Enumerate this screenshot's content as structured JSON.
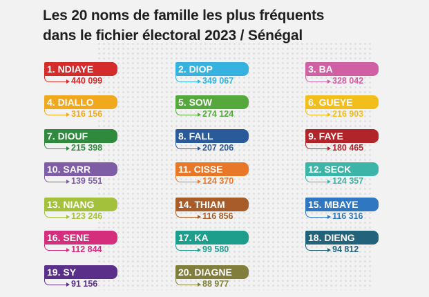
{
  "title_lines": [
    "Les 20 noms de famille les plus fréquents",
    "dans le fichier électoral 2023 / Sénégal"
  ],
  "chart_data": {
    "type": "table",
    "title": "Les 20 noms de famille les plus fréquents dans le fichier électoral 2023 / Sénégal",
    "items": [
      {
        "label": "1. NDIAYE",
        "value": "440 099",
        "color": "#d42b2b"
      },
      {
        "label": "2. DIOP",
        "value": "349 067",
        "color": "#35b2e0"
      },
      {
        "label": "3. BA",
        "value": "328 042",
        "color": "#d060a4"
      },
      {
        "label": "4. DIALLO",
        "value": "316 156",
        "color": "#f0a81c"
      },
      {
        "label": "5. SOW",
        "value": "274 124",
        "color": "#55a83c"
      },
      {
        "label": "6. GUEYE",
        "value": "216 903",
        "color": "#f1be1b"
      },
      {
        "label": "7. DIOUF",
        "value": "215 398",
        "color": "#2f8a3e"
      },
      {
        "label": "8. FALL",
        "value": "207 206",
        "color": "#2a5a9a"
      },
      {
        "label": "9. FAYE",
        "value": "180 465",
        "color": "#b1252a"
      },
      {
        "label": "10. SARR",
        "value": "139 551",
        "color": "#7e5ca6"
      },
      {
        "label": "11. CISSE",
        "value": "124 370",
        "color": "#e8772a"
      },
      {
        "label": "12. SECK",
        "value": "124 357",
        "color": "#3cb5a8"
      },
      {
        "label": "13. NIANG",
        "value": "123 246",
        "color": "#a3c13a"
      },
      {
        "label": "14. THIAM",
        "value": "116 856",
        "color": "#a85c2a"
      },
      {
        "label": "15. MBAYE",
        "value": "116 316",
        "color": "#2f77c0"
      },
      {
        "label": "16.  SENE",
        "value": "112 844",
        "color": "#d52e7c"
      },
      {
        "label": "17. KA",
        "value": "99 580",
        "color": "#1d9e8d"
      },
      {
        "label": "18. DIENG",
        "value": "94 812",
        "color": "#22627a"
      },
      {
        "label": "19. SY",
        "value": "91 156",
        "color": "#5a2f8a"
      },
      {
        "label": "20. DIAGNE",
        "value": "88 977",
        "color": "#807e3a"
      }
    ]
  }
}
